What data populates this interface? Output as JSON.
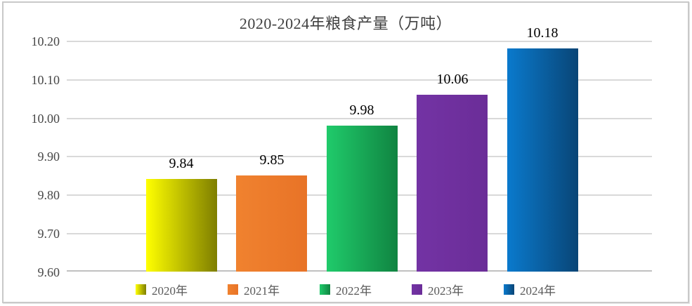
{
  "chart_data": {
    "type": "bar",
    "title": "2020-2024年粮食产量（万吨）",
    "categories": [
      "2020年",
      "2021年",
      "2022年",
      "2023年",
      "2024年"
    ],
    "values": [
      9.84,
      9.85,
      9.98,
      10.06,
      10.18
    ],
    "data_labels": [
      "9.84",
      "9.85",
      "9.98",
      "10.06",
      "10.18"
    ],
    "bar_colors": [
      {
        "from": "#FFFF00",
        "to": "#7E7E00"
      },
      {
        "from": "#F0822F",
        "to": "#E87327"
      },
      {
        "from": "#20CB6B",
        "to": "#108441"
      },
      {
        "from": "#7333A4",
        "to": "#6B2D98"
      },
      {
        "from": "#0A7ACD",
        "to": "#094576"
      }
    ],
    "xlabel": "",
    "ylabel": "",
    "ylim": [
      9.6,
      10.2
    ],
    "yticks": [
      {
        "label": "9.60",
        "value": 9.6
      },
      {
        "label": "9.70",
        "value": 9.7
      },
      {
        "label": "9.80",
        "value": 9.8
      },
      {
        "label": "9.90",
        "value": 9.9
      },
      {
        "label": "10.00",
        "value": 10.0
      },
      {
        "label": "10.10",
        "value": 10.1
      },
      {
        "label": "10.20",
        "value": 10.2
      }
    ],
    "grid": true,
    "legend_position": "bottom",
    "colors_meta": {
      "gridline": "#D9D9D9",
      "baseline": "#C0C0C0",
      "title_text": "#404040",
      "axis_text": "#474747",
      "legend_text": "#595959",
      "data_label_text": "#000000",
      "card_border": "#C9C9C9"
    }
  }
}
